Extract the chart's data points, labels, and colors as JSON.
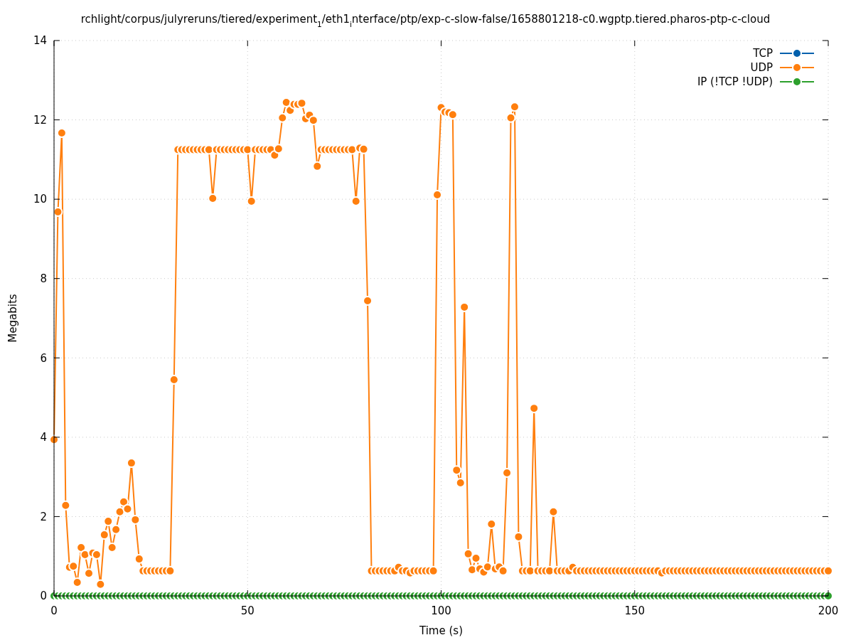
{
  "chart_data": {
    "type": "line",
    "title": "rchlight/corpus/julyreruns/tiered/experiment$_{1}$/eth1$_{i}$nterface/ptp/exp-c-slow-false/1658801218-c0.wgptp.tiered.pharos-ptp-c-cloud",
    "xlabel": "Time (s)",
    "ylabel": "Megabits",
    "x": [
      0,
      1,
      2,
      3,
      4,
      5,
      6,
      7,
      8,
      9,
      10,
      11,
      12,
      13,
      14,
      15,
      16,
      17,
      18,
      19,
      20,
      21,
      22,
      23,
      24,
      25,
      26,
      27,
      28,
      29,
      30,
      31,
      32,
      33,
      34,
      35,
      36,
      37,
      38,
      39,
      40,
      41,
      42,
      43,
      44,
      45,
      46,
      47,
      48,
      49,
      50,
      51,
      52,
      53,
      54,
      55,
      56,
      57,
      58,
      59,
      60,
      61,
      62,
      63,
      64,
      65,
      66,
      67,
      68,
      69,
      70,
      71,
      72,
      73,
      74,
      75,
      76,
      77,
      78,
      79,
      80,
      81,
      82,
      83,
      84,
      85,
      86,
      87,
      88,
      89,
      90,
      91,
      92,
      93,
      94,
      95,
      96,
      97,
      98,
      99,
      100,
      101,
      102,
      103,
      104,
      105,
      106,
      107,
      108,
      109,
      110,
      111,
      112,
      113,
      114,
      115,
      116,
      117,
      118,
      119,
      120,
      121,
      122,
      123,
      124,
      125,
      126,
      127,
      128,
      129,
      130,
      131,
      132,
      133,
      134,
      135,
      136,
      137,
      138,
      139,
      140,
      141,
      142,
      143,
      144,
      145,
      146,
      147,
      148,
      149,
      150,
      151,
      152,
      153,
      154,
      155,
      156,
      157,
      158,
      159,
      160,
      161,
      162,
      163,
      164,
      165,
      166,
      167,
      168,
      169,
      170,
      171,
      172,
      173,
      174,
      175,
      176,
      177,
      178,
      179,
      180,
      181,
      182,
      183,
      184,
      185,
      186,
      187,
      188,
      189,
      190,
      191,
      192,
      193,
      194,
      195,
      196,
      197,
      198,
      199,
      200
    ],
    "series": [
      {
        "name": "TCP",
        "color": "#0060ad",
        "values": [
          null,
          null,
          null,
          null,
          null,
          null,
          null,
          null,
          null,
          null,
          null,
          null,
          null,
          null,
          null,
          null,
          null,
          null,
          null,
          null,
          null,
          null,
          null,
          null,
          null,
          null,
          null,
          null,
          null,
          null,
          null,
          null,
          null,
          null,
          null,
          null,
          null,
          null,
          null,
          null,
          null,
          null,
          null,
          null,
          null,
          null,
          null,
          null,
          null,
          null,
          null,
          null,
          null,
          null,
          null,
          null,
          null,
          null,
          null,
          null,
          null,
          null,
          null,
          null,
          null,
          null,
          null,
          null,
          null,
          null,
          null,
          null,
          null,
          null,
          null,
          null,
          null,
          null,
          null,
          null,
          null,
          null,
          null,
          null,
          null,
          null,
          null,
          null,
          null,
          null,
          null,
          null,
          null,
          null,
          null,
          null,
          null,
          null,
          null,
          null,
          null,
          null,
          null,
          null,
          null,
          null,
          null,
          null,
          null,
          null,
          null,
          null,
          null,
          null,
          null,
          null,
          null,
          null,
          null,
          null,
          null,
          null,
          null,
          null,
          null,
          null,
          null,
          null,
          null,
          null,
          null,
          null,
          null,
          null,
          null,
          null,
          null,
          null,
          null,
          null,
          null,
          null,
          null,
          null,
          null,
          null,
          null,
          null,
          null,
          null,
          null,
          null,
          null,
          null,
          null,
          null,
          null,
          null,
          null,
          null,
          null,
          null,
          null,
          null,
          null,
          null,
          null,
          null,
          null,
          null,
          null,
          null,
          null,
          null,
          null,
          null,
          null,
          null,
          null,
          null,
          null,
          null,
          null,
          null,
          null,
          null,
          null,
          null,
          null,
          null,
          null,
          null,
          null,
          null,
          null,
          null,
          null,
          null,
          null,
          null,
          null
        ]
      },
      {
        "name": "UDP",
        "color": "#ff7f0e",
        "values": [
          3.94,
          9.68,
          11.67,
          2.28,
          0.72,
          0.75,
          0.34,
          1.22,
          1.04,
          0.57,
          1.08,
          1.04,
          0.29,
          1.54,
          1.88,
          1.22,
          1.67,
          2.12,
          2.37,
          2.19,
          3.35,
          1.92,
          0.93,
          0.63,
          0.63,
          0.63,
          0.63,
          0.63,
          0.63,
          0.63,
          0.63,
          5.45,
          11.25,
          11.25,
          11.25,
          11.25,
          11.25,
          11.25,
          11.25,
          11.25,
          11.25,
          10.02,
          11.25,
          11.25,
          11.25,
          11.25,
          11.25,
          11.25,
          11.25,
          11.25,
          11.25,
          9.95,
          11.25,
          11.25,
          11.25,
          11.25,
          11.25,
          11.11,
          11.27,
          12.05,
          12.44,
          12.24,
          12.39,
          12.39,
          12.42,
          12.03,
          12.12,
          11.99,
          10.83,
          11.25,
          11.25,
          11.25,
          11.25,
          11.25,
          11.25,
          11.25,
          11.25,
          11.25,
          9.95,
          11.29,
          11.26,
          7.44,
          0.63,
          0.63,
          0.63,
          0.63,
          0.63,
          0.63,
          0.63,
          0.72,
          0.63,
          0.63,
          0.58,
          0.63,
          0.63,
          0.63,
          0.63,
          0.63,
          0.63,
          10.11,
          12.31,
          12.2,
          12.18,
          12.13,
          3.17,
          2.85,
          7.28,
          1.06,
          0.66,
          0.95,
          0.68,
          0.6,
          0.73,
          1.81,
          0.68,
          0.73,
          0.63,
          3.1,
          12.05,
          12.33,
          1.49,
          0.63,
          0.63,
          0.63,
          4.73,
          0.63,
          0.63,
          0.63,
          0.63,
          2.12,
          0.63,
          0.63,
          0.63,
          0.63,
          0.72,
          0.63,
          0.63,
          0.63,
          0.63,
          0.63,
          0.63,
          0.63,
          0.63,
          0.63,
          0.63,
          0.63,
          0.63,
          0.63,
          0.63,
          0.63,
          0.63,
          0.63,
          0.63,
          0.63,
          0.63,
          0.63,
          0.63,
          0.58,
          0.63,
          0.63,
          0.63,
          0.63,
          0.63,
          0.63,
          0.63,
          0.63,
          0.63,
          0.63,
          0.63,
          0.63,
          0.63,
          0.63,
          0.63,
          0.63,
          0.63,
          0.63,
          0.63,
          0.63,
          0.63,
          0.63,
          0.63,
          0.63,
          0.63,
          0.63,
          0.63,
          0.63,
          0.63,
          0.63,
          0.63,
          0.63,
          0.63,
          0.63,
          0.63,
          0.63,
          0.63,
          0.63,
          0.63,
          0.63,
          0.63,
          0.63,
          0.63
        ]
      },
      {
        "name": "IP (!TCP  !UDP)",
        "color": "#2ca02c",
        "values": [
          0,
          0,
          0,
          0,
          0,
          0,
          0,
          0,
          0,
          0,
          0,
          0,
          0,
          0,
          0,
          0,
          0,
          0,
          0,
          0,
          0,
          0,
          0,
          0,
          0,
          0,
          0,
          0,
          0,
          0,
          0,
          0,
          0,
          0,
          0,
          0,
          0,
          0,
          0,
          0,
          0,
          0,
          0,
          0,
          0,
          0,
          0,
          0,
          0,
          0,
          0,
          0,
          0,
          0,
          0,
          0,
          0,
          0,
          0,
          0,
          0,
          0,
          0,
          0,
          0,
          0,
          0,
          0,
          0,
          0,
          0,
          0,
          0,
          0,
          0,
          0,
          0,
          0,
          0,
          0,
          0,
          0,
          0,
          0,
          0,
          0,
          0,
          0,
          0,
          0,
          0,
          0,
          0,
          0,
          0,
          0,
          0,
          0,
          0,
          0,
          0,
          0,
          0,
          0,
          0,
          0,
          0,
          0,
          0,
          0,
          0,
          0,
          0,
          0,
          0,
          0,
          0,
          0,
          0,
          0,
          0,
          0,
          0,
          0,
          0,
          0,
          0,
          0,
          0,
          0,
          0,
          0,
          0,
          0,
          0,
          0,
          0,
          0,
          0,
          0,
          0,
          0,
          0,
          0,
          0,
          0,
          0,
          0,
          0,
          0,
          0,
          0,
          0,
          0,
          0,
          0,
          0,
          0,
          0,
          0,
          0,
          0,
          0,
          0,
          0,
          0,
          0,
          0,
          0,
          0,
          0,
          0,
          0,
          0,
          0,
          0,
          0,
          0,
          0,
          0,
          0,
          0,
          0,
          0,
          0,
          0,
          0,
          0,
          0,
          0,
          0,
          0,
          0,
          0,
          0,
          0,
          0,
          0,
          0,
          0,
          0
        ]
      }
    ],
    "xlim": [
      0,
      200
    ],
    "xticks": [
      0,
      50,
      100,
      150,
      200
    ],
    "ylim": [
      0,
      14
    ],
    "yticks": [
      0,
      2,
      4,
      6,
      8,
      10,
      12,
      14
    ],
    "grid": true,
    "legend": "top right",
    "marker": "circle",
    "line_style": "solid"
  }
}
